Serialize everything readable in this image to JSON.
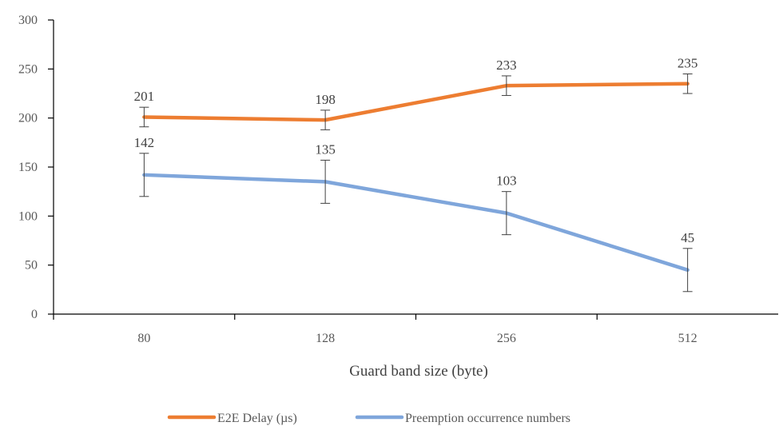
{
  "chart_data": {
    "type": "line",
    "title": "",
    "xlabel": "Guard band size (byte)",
    "ylabel": "",
    "categories": [
      "80",
      "128",
      "256",
      "512"
    ],
    "ylim": [
      0,
      300
    ],
    "yticks": [
      0,
      50,
      100,
      150,
      200,
      250,
      300
    ],
    "grid": false,
    "legend_position": "bottom",
    "series": [
      {
        "name": "E2E Delay (µs)",
        "color": "#ED7D31",
        "values": [
          201,
          198,
          233,
          235
        ],
        "labels": [
          "201",
          "198",
          "233",
          "235"
        ],
        "error": [
          10,
          10,
          10,
          10
        ]
      },
      {
        "name": "Preemption occurrence numbers",
        "color": "#7FA6DB",
        "values": [
          142,
          135,
          103,
          45
        ],
        "labels": [
          "142",
          "135",
          "103",
          "45"
        ],
        "error": [
          22,
          22,
          22,
          22
        ]
      }
    ]
  }
}
